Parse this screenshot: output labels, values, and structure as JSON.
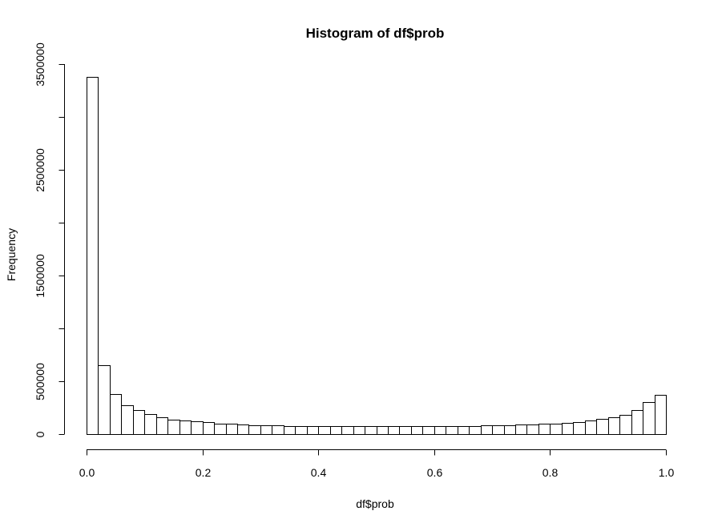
{
  "chart_data": {
    "type": "bar",
    "title": "Histogram of df$prob",
    "xlabel": "df$prob",
    "ylabel": "Frequency",
    "xlim": [
      0,
      1
    ],
    "ylim": [
      0,
      3500000
    ],
    "grid": false,
    "bar_fill": "#ffffff",
    "bar_stroke": "#000000",
    "x_ticks": [
      {
        "value": 0.0,
        "label": "0.0"
      },
      {
        "value": 0.2,
        "label": "0.2"
      },
      {
        "value": 0.4,
        "label": "0.4"
      },
      {
        "value": 0.6,
        "label": "0.6"
      },
      {
        "value": 0.8,
        "label": "0.8"
      },
      {
        "value": 1.0,
        "label": "1.0"
      }
    ],
    "y_ticks": [
      {
        "value": 0,
        "label": "0"
      },
      {
        "value": 500000,
        "label": "500000"
      },
      {
        "value": 1500000,
        "label": "1500000"
      },
      {
        "value": 2500000,
        "label": "2500000"
      },
      {
        "value": 3500000,
        "label": "3500000"
      }
    ],
    "bin_width": 0.02,
    "bin_starts": [
      0.0,
      0.02,
      0.04,
      0.06,
      0.08,
      0.1,
      0.12,
      0.14,
      0.16,
      0.18,
      0.2,
      0.22,
      0.24,
      0.26,
      0.28,
      0.3,
      0.32,
      0.34,
      0.36,
      0.38,
      0.4,
      0.42,
      0.44,
      0.46,
      0.48,
      0.5,
      0.52,
      0.54,
      0.56,
      0.58,
      0.6,
      0.62,
      0.64,
      0.66,
      0.68,
      0.7,
      0.72,
      0.74,
      0.76,
      0.78,
      0.8,
      0.82,
      0.84,
      0.86,
      0.88,
      0.9,
      0.92,
      0.94,
      0.96,
      0.98
    ],
    "values": [
      3380000,
      650000,
      380000,
      275000,
      225000,
      190000,
      160000,
      140000,
      128000,
      118000,
      110000,
      102000,
      96000,
      90000,
      86000,
      83000,
      81000,
      79000,
      77000,
      76000,
      75000,
      74000,
      73000,
      72000,
      72000,
      72000,
      72000,
      72000,
      72000,
      73000,
      74000,
      75000,
      76000,
      78000,
      80000,
      82000,
      85000,
      88000,
      92000,
      96000,
      101000,
      108000,
      117000,
      128000,
      142000,
      160000,
      185000,
      225000,
      300000,
      375000
    ]
  }
}
